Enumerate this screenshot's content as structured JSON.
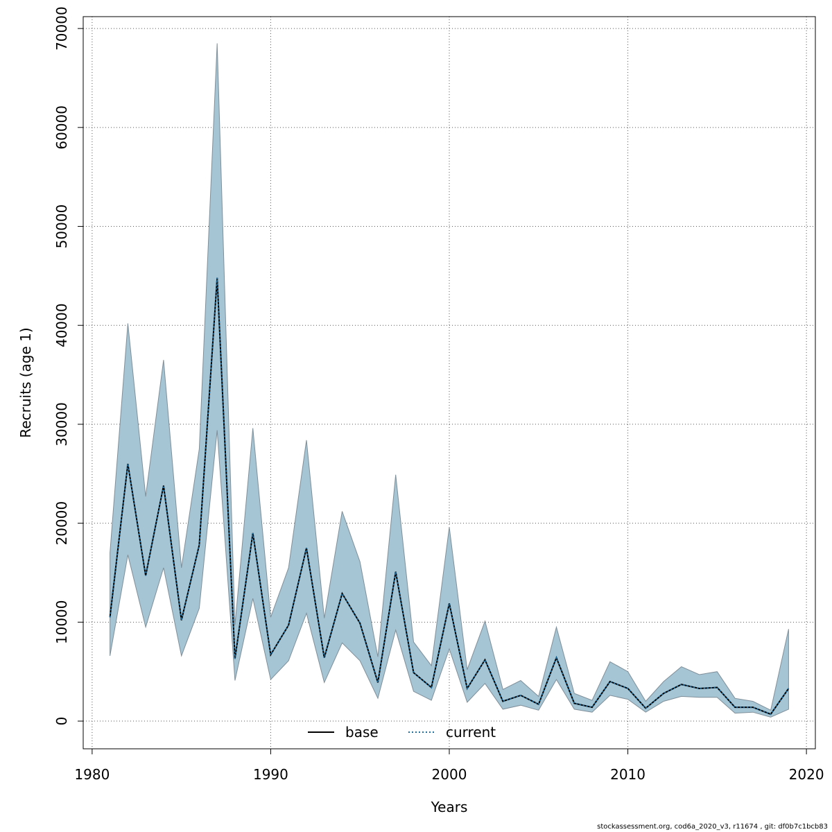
{
  "chart_data": {
    "type": "area",
    "title": "",
    "xlabel": "Years",
    "ylabel": "Recruits (age 1)",
    "xlim": [
      1979.5,
      2020.5
    ],
    "ylim": [
      -2800,
      71200
    ],
    "x_ticks": [
      1980,
      1990,
      2000,
      2010,
      2020
    ],
    "x_tick_labels": [
      "1980",
      "1990",
      "2000",
      "2010",
      "2020"
    ],
    "y_ticks": [
      0,
      10000,
      20000,
      30000,
      40000,
      50000,
      60000,
      70000
    ],
    "y_tick_labels": [
      "0",
      "10000",
      "20000",
      "30000",
      "40000",
      "50000",
      "60000",
      "70000"
    ],
    "grid": true,
    "legend_position": "bottom-center",
    "colors": {
      "band": "#a5c4d4",
      "band_edge": "#7f8f99",
      "base": "#000000",
      "current": "#1f6fa0"
    },
    "x": [
      1981,
      1982,
      1983,
      1984,
      1985,
      1986,
      1987,
      1988,
      1989,
      1990,
      1991,
      1992,
      1993,
      1994,
      1995,
      1996,
      1997,
      1998,
      1999,
      2000,
      2001,
      2002,
      2003,
      2004,
      2005,
      2006,
      2007,
      2008,
      2009,
      2010,
      2011,
      2012,
      2013,
      2014,
      2015,
      2016,
      2017,
      2018,
      2019
    ],
    "series": [
      {
        "name": "base",
        "style": "solid",
        "values": [
          10500,
          26000,
          14700,
          23800,
          10200,
          17800,
          44800,
          6300,
          19000,
          6700,
          9700,
          17500,
          6400,
          12900,
          9900,
          3900,
          15100,
          4900,
          3400,
          11900,
          3300,
          6200,
          2000,
          2600,
          1700,
          6400,
          1800,
          1400,
          4000,
          3300,
          1300,
          2800,
          3700,
          3300,
          3400,
          1400,
          1400,
          700,
          3300
        ]
      },
      {
        "name": "current",
        "style": "dotted",
        "values": [
          10500,
          26000,
          14700,
          23800,
          10200,
          17800,
          44800,
          6300,
          19000,
          6700,
          9700,
          17500,
          6400,
          12900,
          9900,
          3900,
          15100,
          4900,
          3400,
          11900,
          3300,
          6200,
          2000,
          2600,
          1700,
          6400,
          1800,
          1400,
          4000,
          3300,
          1300,
          2800,
          3700,
          3300,
          3400,
          1400,
          1400,
          700,
          3300
        ]
      }
    ],
    "band": {
      "lower": [
        6600,
        16800,
        9500,
        15500,
        6600,
        11400,
        29400,
        4100,
        12400,
        4200,
        6100,
        10900,
        3900,
        7900,
        6100,
        2300,
        9200,
        3000,
        2100,
        7300,
        1900,
        3800,
        1200,
        1600,
        1100,
        4200,
        1200,
        900,
        2600,
        2200,
        900,
        2000,
        2500,
        2400,
        2400,
        800,
        900,
        400,
        1200
      ],
      "upper": [
        17000,
        40200,
        22700,
        36500,
        15500,
        27500,
        68500,
        9700,
        29600,
        10500,
        15500,
        28400,
        10400,
        21200,
        16100,
        6500,
        24900,
        8000,
        5600,
        19600,
        5200,
        10100,
        3200,
        4100,
        2500,
        9500,
        2800,
        2100,
        6000,
        5000,
        2000,
        4000,
        5500,
        4700,
        5000,
        2300,
        2000,
        1100,
        9300
      ]
    }
  },
  "footer": "stockassessment.org, cod6a_2020_v3, r11674 , git: df0b7c1bcb83"
}
